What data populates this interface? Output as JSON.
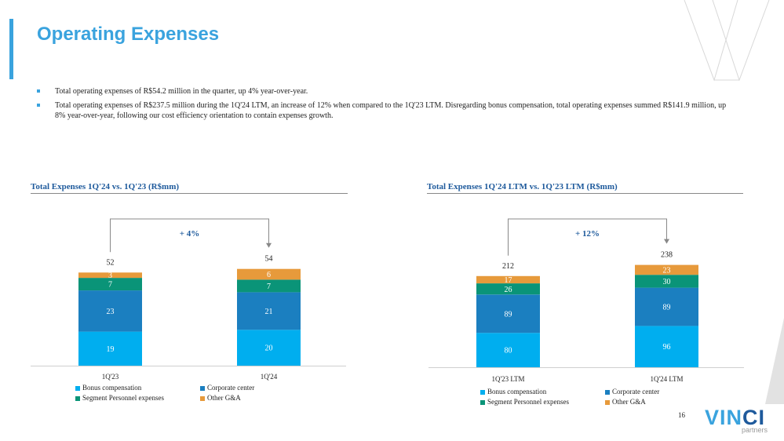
{
  "page": {
    "title": "Operating Expenses",
    "page_number": "16",
    "bullets": [
      "Total operating expenses of R$54.2 million in the quarter, up 4% year-over-year.",
      "Total operating expenses of R$237.5 million during the 1Q'24 LTM, an increase of 12% when compared to the 1Q'23 LTM. Disregarding bonus compensation, total operating expenses summed R$141.9 million, up 8% year-over-year, following our cost efficiency orientation to contain expenses growth."
    ],
    "logo": {
      "text_a": "VIN",
      "text_b": "CI",
      "sub": "partners"
    },
    "colors": {
      "accent": "#3aa3de",
      "title_blue": "#1e5a9c"
    }
  },
  "chart_data": [
    {
      "type": "bar",
      "stacked": true,
      "title": "Total Expenses 1Q'24 vs. 1Q'23 (R$mm)",
      "categories": [
        "1Q'23",
        "1Q'24"
      ],
      "totals": [
        "52",
        "54"
      ],
      "growth_label": "+ 4%",
      "series": [
        {
          "name": "Bonus compensation",
          "color": "#00aeef",
          "values": [
            19,
            20
          ]
        },
        {
          "name": "Corporate center",
          "color": "#1b7fc0",
          "values": [
            23,
            21
          ]
        },
        {
          "name": "Segment Personnel expenses",
          "color": "#0a9478",
          "values": [
            7,
            7
          ]
        },
        {
          "name": "Other G&A",
          "color": "#e79a3b",
          "values": [
            3,
            6
          ]
        }
      ],
      "ylim": [
        0,
        60
      ]
    },
    {
      "type": "bar",
      "stacked": true,
      "title": "Total Expenses 1Q'24 LTM vs. 1Q'23 LTM (R$mm)",
      "categories": [
        "1Q'23 LTM",
        "1Q'24 LTM"
      ],
      "totals": [
        "212",
        "238"
      ],
      "growth_label": "+ 12%",
      "series": [
        {
          "name": "Bonus compensation",
          "color": "#00aeef",
          "values": [
            80,
            96
          ]
        },
        {
          "name": "Corporate center",
          "color": "#1b7fc0",
          "values": [
            89,
            89
          ]
        },
        {
          "name": "Segment Personnel expenses",
          "color": "#0a9478",
          "values": [
            26,
            30
          ]
        },
        {
          "name": "Other G&A",
          "color": "#e79a3b",
          "values": [
            17,
            23
          ]
        }
      ],
      "ylim": [
        0,
        260
      ]
    }
  ]
}
